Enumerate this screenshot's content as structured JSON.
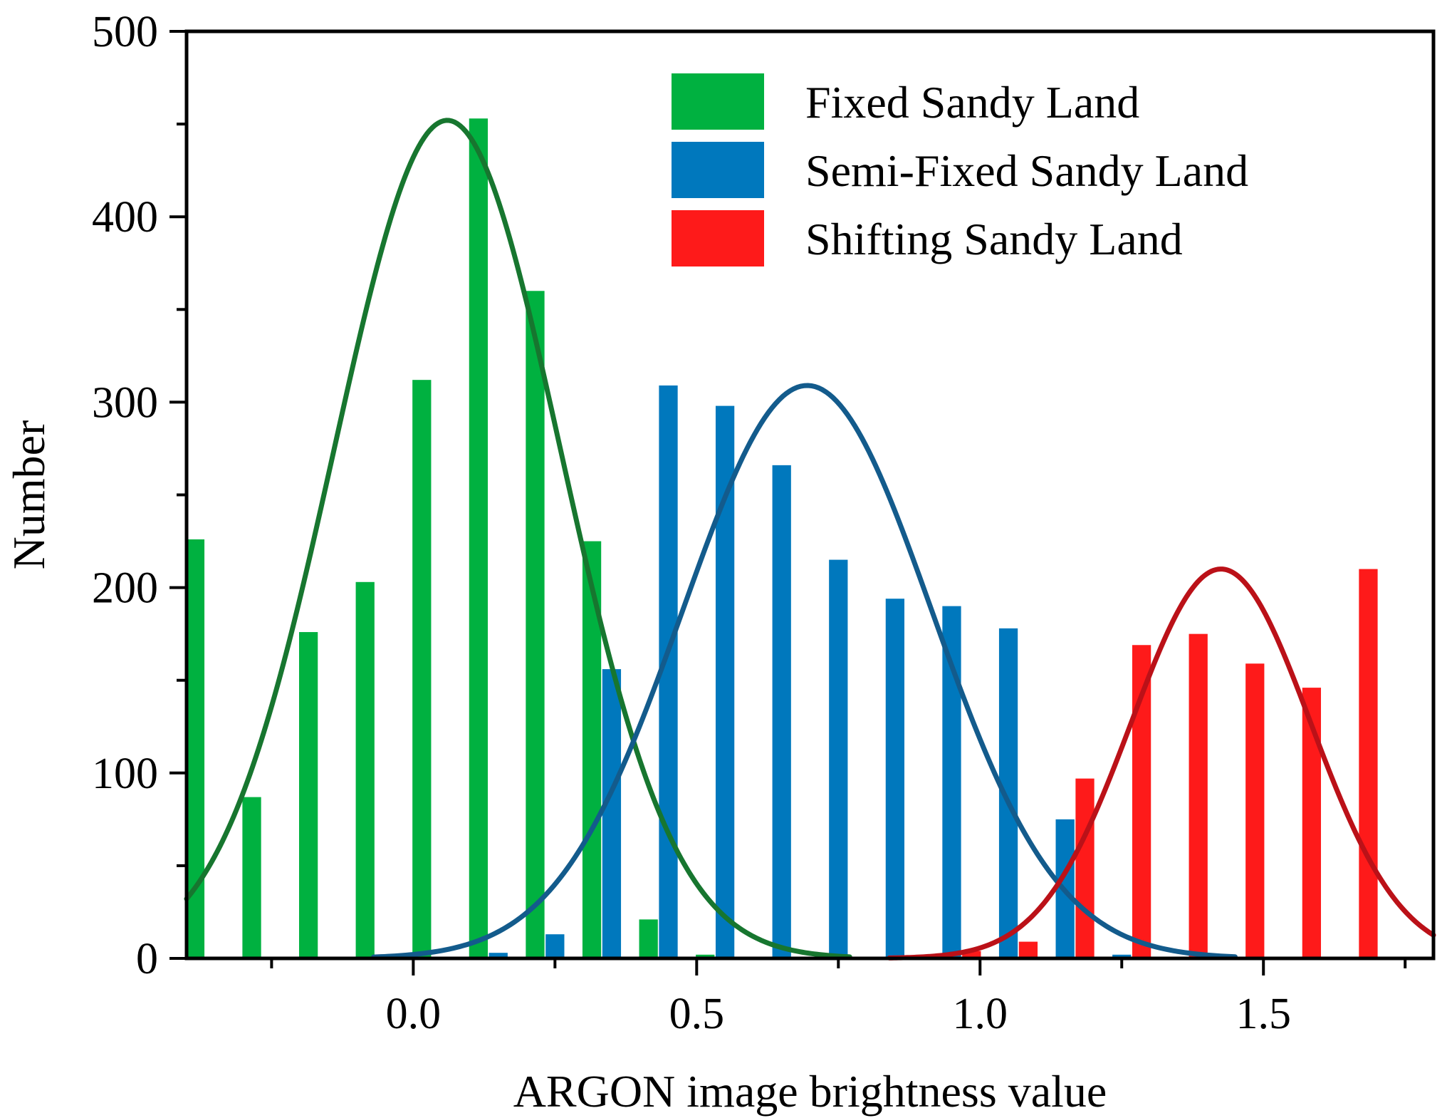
{
  "chart_data": {
    "type": "bar",
    "xlabel": "ARGON image brightness value",
    "ylabel": "Number",
    "xlim": [
      -0.4,
      1.8
    ],
    "ylim": [
      0,
      500
    ],
    "x_ticks": [
      {
        "value": 0.0,
        "label": "0.0"
      },
      {
        "value": 0.5,
        "label": "0.5"
      },
      {
        "value": 1.0,
        "label": "1.0"
      },
      {
        "value": 1.5,
        "label": "1.5"
      }
    ],
    "x_minor_ticks": [
      -0.25,
      0.25,
      0.75,
      1.25,
      1.75
    ],
    "y_ticks": [
      {
        "value": 0,
        "label": "0"
      },
      {
        "value": 100,
        "label": "100"
      },
      {
        "value": 200,
        "label": "200"
      },
      {
        "value": 300,
        "label": "300"
      },
      {
        "value": 400,
        "label": "400"
      },
      {
        "value": 500,
        "label": "500"
      }
    ],
    "y_minor_ticks": [
      50,
      150,
      250,
      350,
      450
    ],
    "bar_width": 0.033,
    "legend_position": "top-right",
    "series": [
      {
        "name": "Fixed Sandy Land",
        "color": "#00b140",
        "curve_color": "#17762f",
        "x": [
          -0.385,
          -0.285,
          -0.185,
          -0.085,
          0.015,
          0.115,
          0.215,
          0.315,
          0.415,
          0.515
        ],
        "values": [
          226,
          87,
          176,
          203,
          312,
          453,
          360,
          225,
          21,
          2
        ],
        "fit": {
          "mu": 0.06,
          "sigma": 0.2,
          "peak": 452,
          "x_start": -0.4,
          "x_end": 0.77
        }
      },
      {
        "name": "Semi-Fixed Sandy Land",
        "color": "#0078bd",
        "curve_color": "#135b8c",
        "x": [
          0.15,
          0.25,
          0.35,
          0.45,
          0.55,
          0.65,
          0.75,
          0.85,
          0.95,
          1.05,
          1.15,
          1.25
        ],
        "values": [
          3,
          13,
          156,
          309,
          298,
          266,
          215,
          194,
          190,
          178,
          75,
          2
        ],
        "fit": {
          "mu": 0.695,
          "sigma": 0.22,
          "peak": 309,
          "x_start": -0.07,
          "x_end": 1.45
        }
      },
      {
        "name": "Shifting Sandy Land",
        "color": "#fe1a1a",
        "curve_color": "#bb1118",
        "x": [
          0.985,
          1.085,
          1.185,
          1.285,
          1.385,
          1.485,
          1.585,
          1.685
        ],
        "values": [
          4,
          9,
          97,
          169,
          175,
          159,
          146,
          210
        ],
        "fit": {
          "mu": 1.425,
          "sigma": 0.158,
          "peak": 210,
          "x_start": 0.84,
          "x_end": 1.8
        }
      }
    ]
  }
}
